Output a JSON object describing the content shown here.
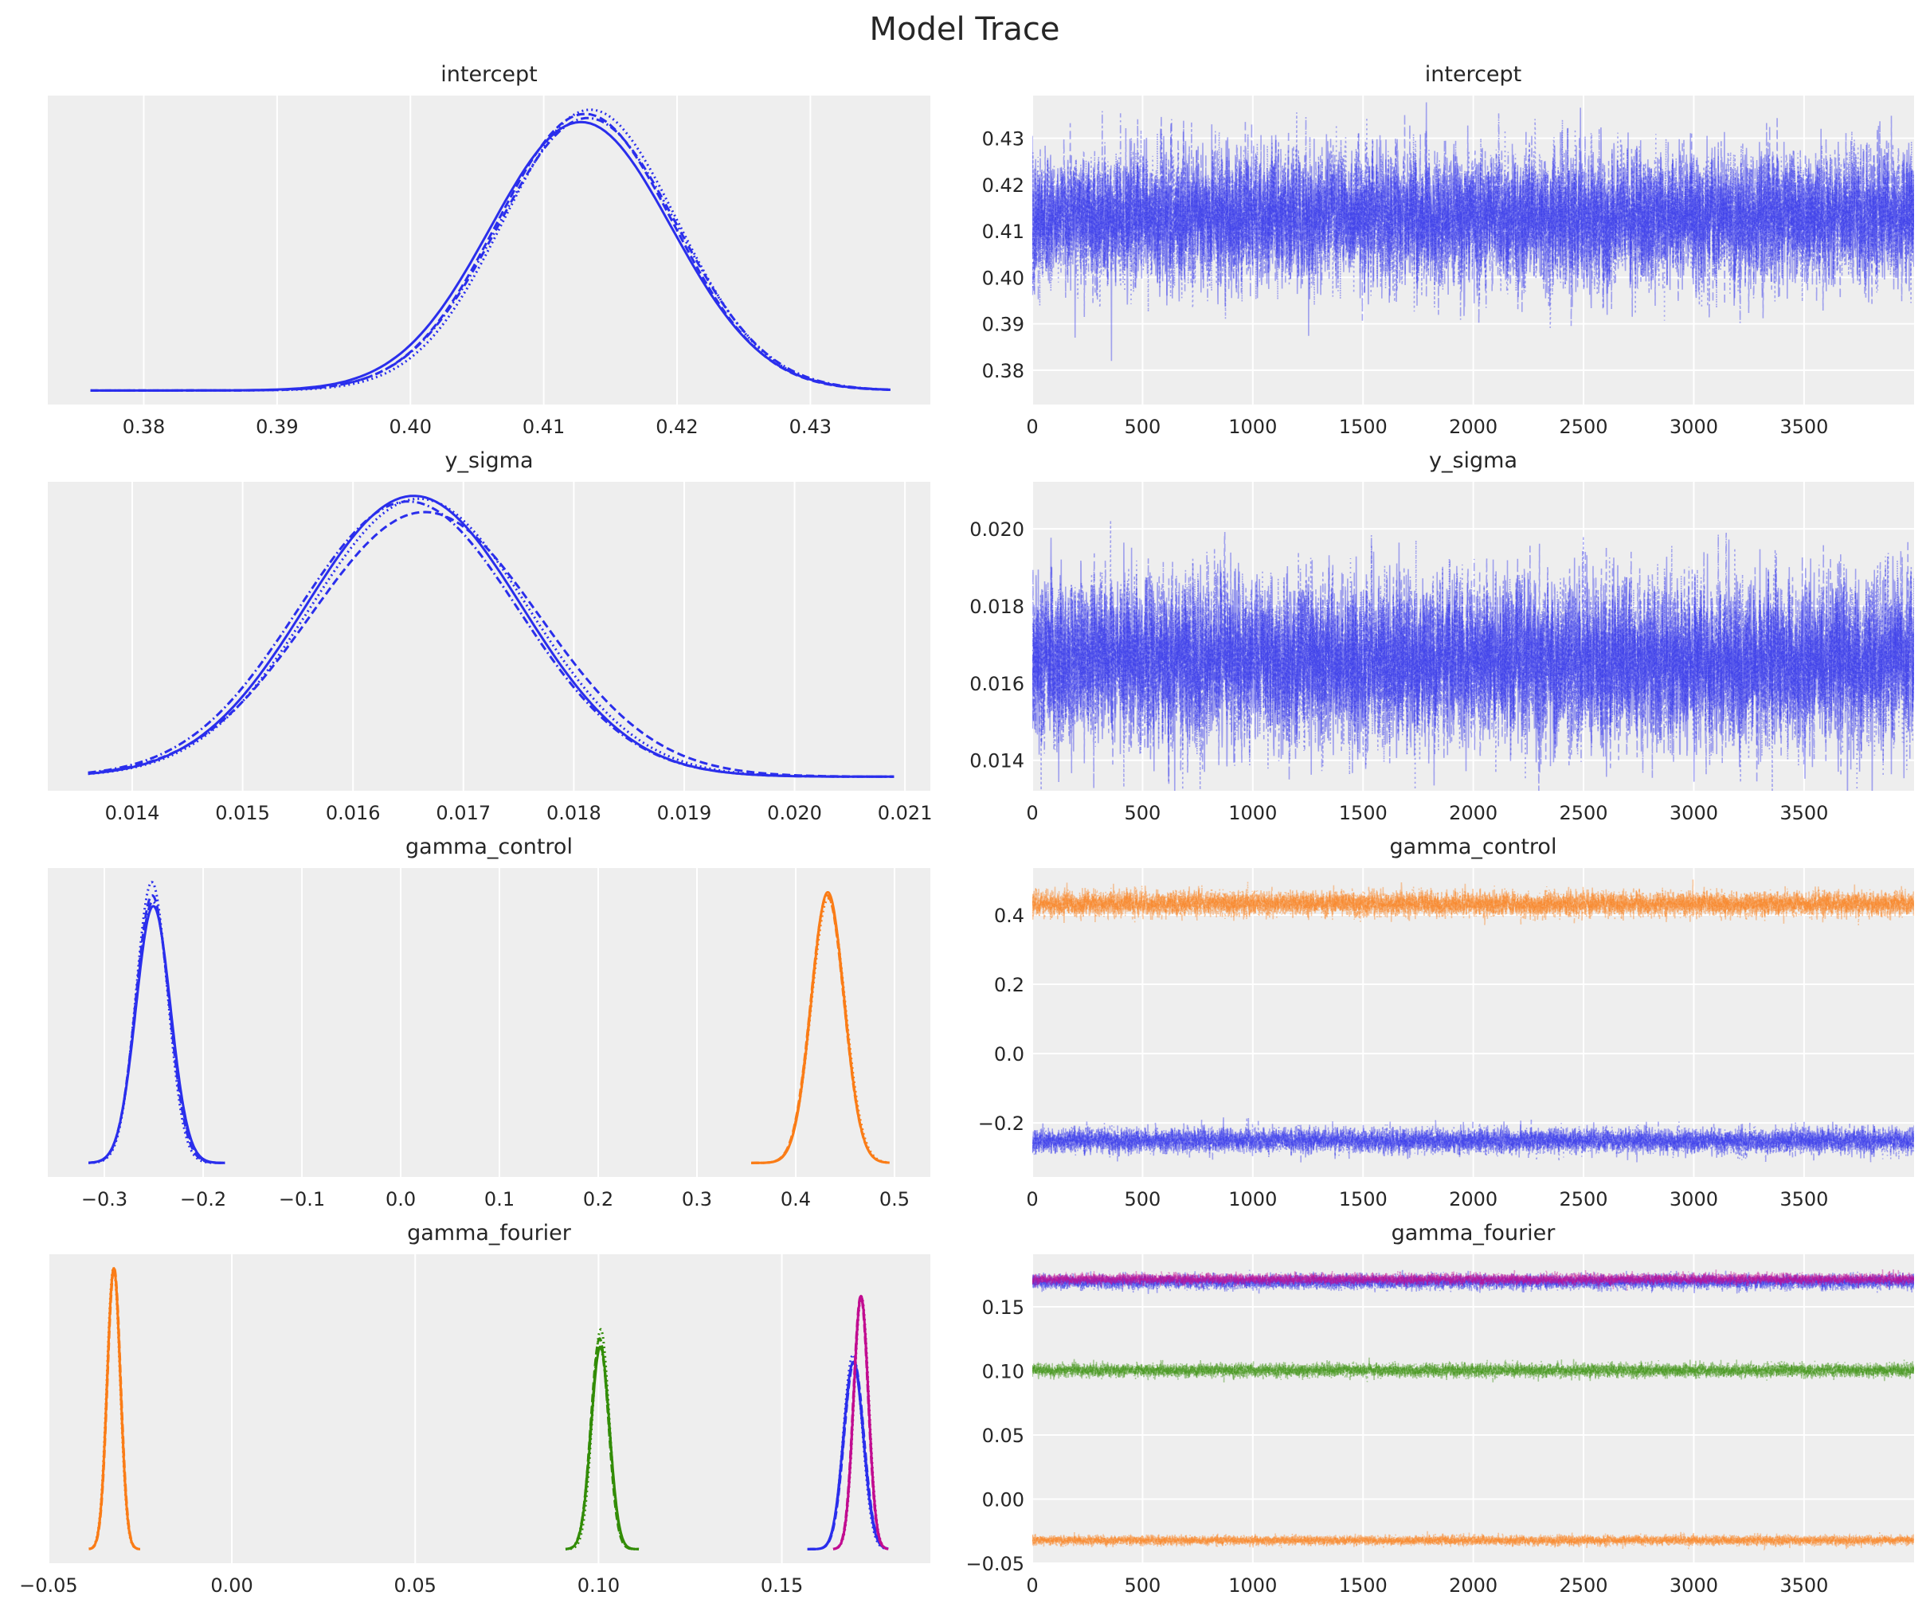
{
  "figure_title": "Model Trace",
  "style": {
    "background": "#eeeeee",
    "grid": "#ffffff",
    "text": "#262626"
  },
  "chains": 4,
  "chain_linestyles": [
    "solid",
    "dashed",
    "dotted",
    "dashdot"
  ],
  "chart_data": [
    {
      "type": "line",
      "kind": "kde",
      "title": "intercept",
      "xlim": [
        0.3728,
        0.439
      ],
      "grid": true,
      "xticks": [
        0.38,
        0.39,
        0.4,
        0.41,
        0.42,
        0.43
      ],
      "xtick_labels": [
        "0.38",
        "0.39",
        "0.40",
        "0.41",
        "0.42",
        "0.43"
      ],
      "series": [
        {
          "color": "#2a2eec",
          "range": [
            0.376,
            0.436
          ],
          "chains": [
            {
              "mean": 0.4128,
              "sd": 0.0068
            },
            {
              "mean": 0.4131,
              "sd": 0.0066
            },
            {
              "mean": 0.4135,
              "sd": 0.0065
            },
            {
              "mean": 0.4133,
              "sd": 0.0067
            }
          ]
        }
      ]
    },
    {
      "type": "line",
      "kind": "trace",
      "title": "intercept",
      "xlim": [
        0,
        3999
      ],
      "ylim": [
        0.3726,
        0.4392
      ],
      "grid": true,
      "xticks": [
        0,
        500,
        1000,
        1500,
        2000,
        2500,
        3000,
        3500
      ],
      "xtick_labels": [
        "0",
        "500",
        "1000",
        "1500",
        "2000",
        "2500",
        "3000",
        "3500"
      ],
      "yticks": [
        0.38,
        0.39,
        0.4,
        0.41,
        0.42,
        0.43
      ],
      "ytick_labels": [
        "0.38",
        "0.39",
        "0.40",
        "0.41",
        "0.42",
        "0.43"
      ],
      "draws": 4000,
      "series": [
        {
          "color": "#2a2eec",
          "mean": 0.4131,
          "sd": 0.0067
        }
      ]
    },
    {
      "type": "line",
      "kind": "kde",
      "title": "y_sigma",
      "xlim": [
        0.013235,
        0.02123
      ],
      "grid": true,
      "xticks": [
        0.014,
        0.015,
        0.016,
        0.017,
        0.018,
        0.019,
        0.02,
        0.021
      ],
      "xtick_labels": [
        "0.014",
        "0.015",
        "0.016",
        "0.017",
        "0.018",
        "0.019",
        "0.020",
        "0.021"
      ],
      "series": [
        {
          "color": "#2a2eec",
          "range": [
            0.0136,
            0.0209
          ],
          "chains": [
            {
              "mean": 0.01655,
              "sd": 0.00098
            },
            {
              "mean": 0.01665,
              "sd": 0.00104
            },
            {
              "mean": 0.0166,
              "sd": 0.00099
            },
            {
              "mean": 0.0165,
              "sd": 0.001
            }
          ]
        }
      ]
    },
    {
      "type": "line",
      "kind": "trace",
      "title": "y_sigma",
      "xlim": [
        0,
        3999
      ],
      "ylim": [
        0.01321,
        0.02122
      ],
      "grid": true,
      "xticks": [
        0,
        500,
        1000,
        1500,
        2000,
        2500,
        3000,
        3500
      ],
      "xtick_labels": [
        "0",
        "500",
        "1000",
        "1500",
        "2000",
        "2500",
        "3000",
        "3500"
      ],
      "yticks": [
        0.014,
        0.016,
        0.018,
        0.02
      ],
      "ytick_labels": [
        "0.014",
        "0.016",
        "0.018",
        "0.020"
      ],
      "draws": 4000,
      "series": [
        {
          "color": "#2a2eec",
          "mean": 0.01658,
          "sd": 0.001
        }
      ]
    },
    {
      "type": "line",
      "kind": "kde",
      "title": "gamma_control",
      "xlim": [
        -0.3573,
        0.5363
      ],
      "grid": true,
      "xticks": [
        -0.3,
        -0.2,
        -0.1,
        0.0,
        0.1,
        0.2,
        0.3,
        0.4,
        0.5
      ],
      "xtick_labels": [
        "−0.3",
        "−0.2",
        "−0.1",
        "0.0",
        "0.1",
        "0.2",
        "0.3",
        "0.4",
        "0.5"
      ],
      "series": [
        {
          "color": "#2a2eec",
          "range": [
            -0.316,
            -0.178
          ],
          "chains": [
            {
              "mean": -0.2505,
              "sd": 0.0175
            },
            {
              "mean": -0.2515,
              "sd": 0.0168
            },
            {
              "mean": -0.252,
              "sd": 0.016
            },
            {
              "mean": -0.251,
              "sd": 0.0172
            }
          ]
        },
        {
          "color": "#fa7c17",
          "range": [
            0.355,
            0.495
          ],
          "chains": [
            {
              "mean": 0.4325,
              "sd": 0.0166
            },
            {
              "mean": 0.432,
              "sd": 0.0168
            },
            {
              "mean": 0.433,
              "sd": 0.017
            },
            {
              "mean": 0.4322,
              "sd": 0.0167
            }
          ]
        }
      ]
    },
    {
      "type": "line",
      "kind": "trace",
      "title": "gamma_control",
      "xlim": [
        0,
        3999
      ],
      "ylim": [
        -0.356,
        0.5355
      ],
      "grid": true,
      "xticks": [
        0,
        500,
        1000,
        1500,
        2000,
        2500,
        3000,
        3500
      ],
      "xtick_labels": [
        "0",
        "500",
        "1000",
        "1500",
        "2000",
        "2500",
        "3000",
        "3500"
      ],
      "yticks": [
        -0.2,
        0.0,
        0.2,
        0.4
      ],
      "ytick_labels": [
        "−0.2",
        "0.0",
        "0.2",
        "0.4"
      ],
      "draws": 4000,
      "series": [
        {
          "color": "#2a2eec",
          "mean": -0.2512,
          "sd": 0.0169
        },
        {
          "color": "#fa7c17",
          "mean": 0.4324,
          "sd": 0.0168
        }
      ]
    },
    {
      "type": "line",
      "kind": "kde",
      "title": "gamma_fourier",
      "xlim": [
        -0.0502,
        0.1905
      ],
      "grid": true,
      "xticks": [
        -0.05,
        0.0,
        0.05,
        0.1,
        0.15
      ],
      "xtick_labels": [
        "−0.05",
        "0.00",
        "0.05",
        "0.10",
        "0.15"
      ],
      "series": [
        {
          "color": "#fa7c17",
          "range": [
            -0.039,
            -0.025
          ],
          "chains": [
            {
              "mean": -0.0322,
              "sd": 0.0018
            },
            {
              "mean": -0.0321,
              "sd": 0.0018
            },
            {
              "mean": -0.0323,
              "sd": 0.0018
            },
            {
              "mean": -0.0322,
              "sd": 0.0018
            }
          ]
        },
        {
          "color": "#328c06",
          "range": [
            0.091,
            0.111
          ],
          "chains": [
            {
              "mean": 0.1005,
              "sd": 0.0025
            },
            {
              "mean": 0.1003,
              "sd": 0.0024
            },
            {
              "mean": 0.1006,
              "sd": 0.0023
            },
            {
              "mean": 0.1004,
              "sd": 0.0025
            }
          ]
        },
        {
          "color": "#2a2eec",
          "range": [
            0.157,
            0.179
          ],
          "chains": [
            {
              "mean": 0.1695,
              "sd": 0.0027
            },
            {
              "mean": 0.1697,
              "sd": 0.0027
            },
            {
              "mean": 0.1694,
              "sd": 0.0026
            },
            {
              "mean": 0.1696,
              "sd": 0.0027
            }
          ]
        },
        {
          "color": "#c10c90",
          "range": [
            0.164,
            0.179
          ],
          "chains": [
            {
              "mean": 0.1716,
              "sd": 0.002
            },
            {
              "mean": 0.1715,
              "sd": 0.002
            },
            {
              "mean": 0.1717,
              "sd": 0.002
            },
            {
              "mean": 0.1716,
              "sd": 0.002
            }
          ]
        }
      ]
    },
    {
      "type": "line",
      "kind": "trace",
      "title": "gamma_fourier",
      "xlim": [
        0,
        3999
      ],
      "ylim": [
        -0.05,
        0.191
      ],
      "grid": true,
      "xticks": [
        0,
        500,
        1000,
        1500,
        2000,
        2500,
        3000,
        3500
      ],
      "xtick_labels": [
        "0",
        "500",
        "1000",
        "1500",
        "2000",
        "2500",
        "3000",
        "3500"
      ],
      "yticks": [
        -0.05,
        0.0,
        0.05,
        0.1,
        0.15
      ],
      "ytick_labels": [
        "−0.05",
        "0.00",
        "0.05",
        "0.10",
        "0.15"
      ],
      "draws": 4000,
      "series": [
        {
          "color": "#fa7c17",
          "mean": -0.0322,
          "sd": 0.0018
        },
        {
          "color": "#328c06",
          "mean": 0.1004,
          "sd": 0.0025
        },
        {
          "color": "#2a2eec",
          "mean": 0.1695,
          "sd": 0.0027
        },
        {
          "color": "#c10c90",
          "mean": 0.1716,
          "sd": 0.002
        }
      ]
    }
  ]
}
